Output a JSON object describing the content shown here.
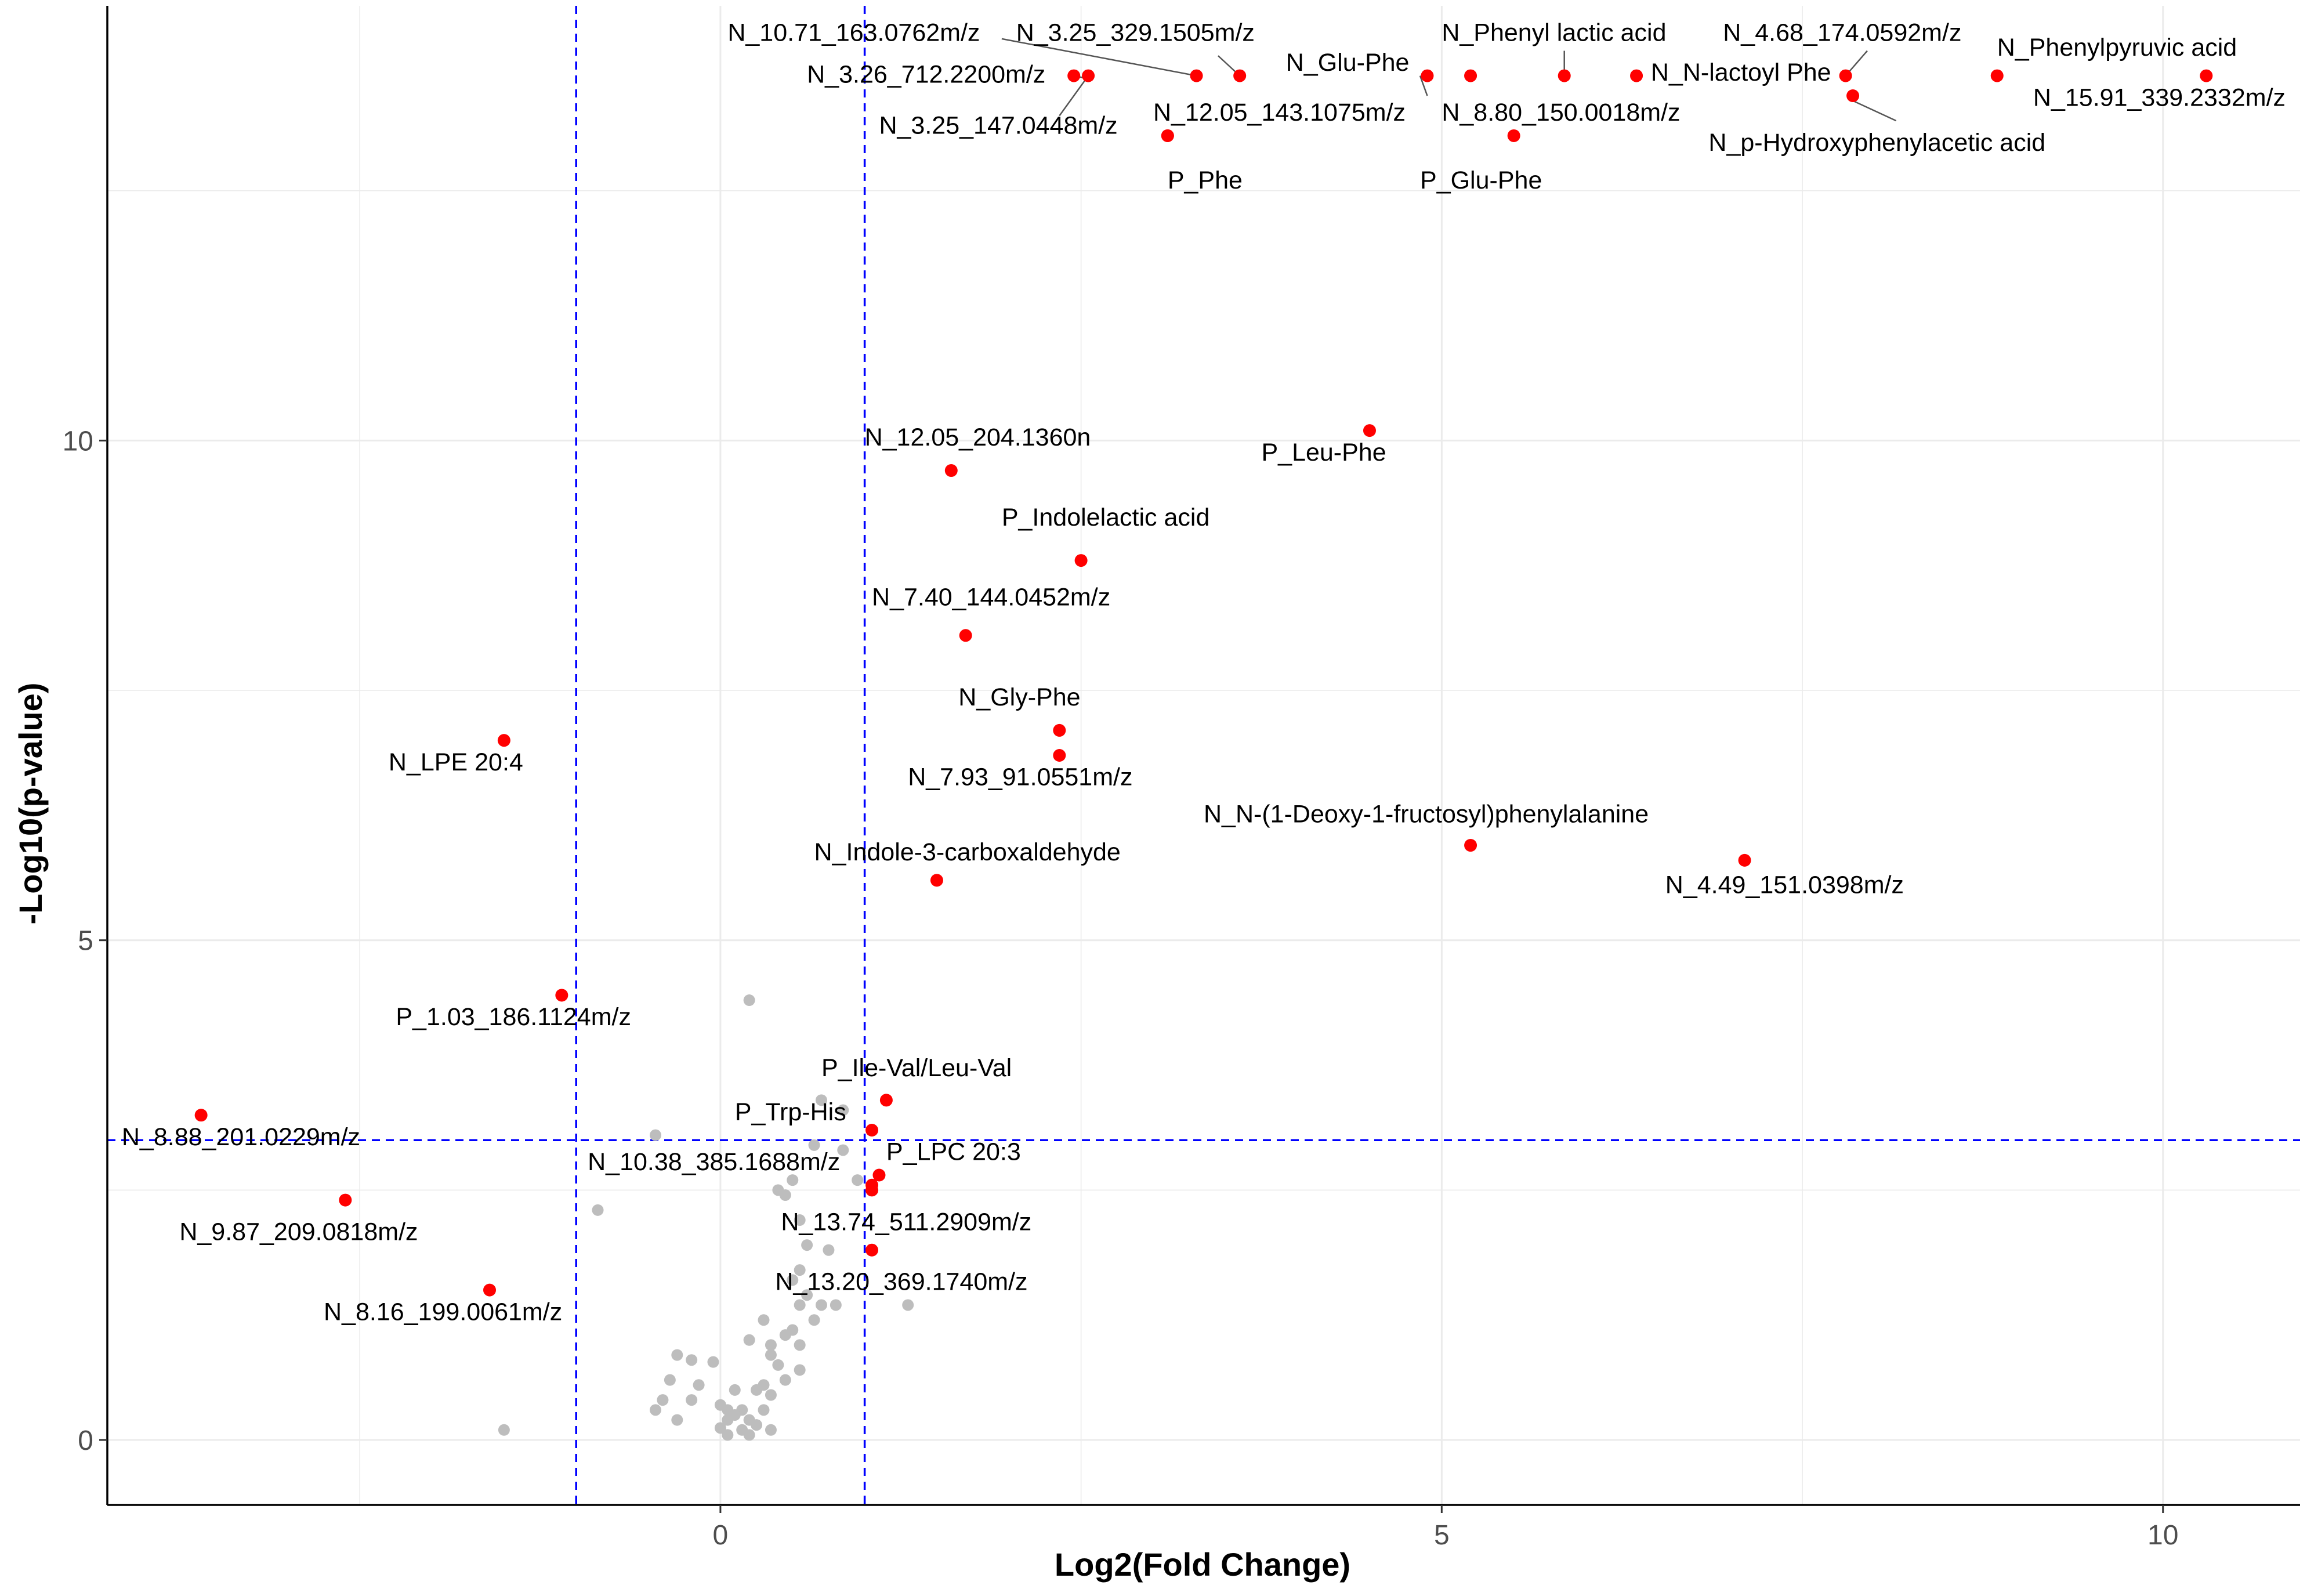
{
  "chart_data": {
    "type": "scatter",
    "title": "",
    "xlabel": "Log2(Fold Change)",
    "ylabel": "-Log10(p-value)",
    "xlim": [
      -4.25,
      10.95
    ],
    "ylim": [
      -0.65,
      14.35
    ],
    "xticks": [
      0,
      5,
      10
    ],
    "yticks": [
      0,
      5,
      10
    ],
    "xtick_labels": [
      "0",
      "5",
      "10"
    ],
    "ytick_labels": [
      "0",
      "5",
      "10"
    ],
    "grid": true,
    "legend": "none",
    "colors": {
      "significant": "#ff0000",
      "nonsignificant": "#bdbdbd",
      "threshold": "#0000ff",
      "axis": "#000000",
      "grid": "#ebebeb"
    },
    "thresholds": {
      "x": [
        -1,
        1
      ],
      "y": 3
    },
    "significant": [
      {
        "name": "N_10.71_163.0762m/z",
        "x": 3.3,
        "y": 13.65
      },
      {
        "name": "N_3.25_329.1505m/z",
        "x": 3.6,
        "y": 13.65
      },
      {
        "name": "N_3.26_712.2200m/z",
        "x": 2.45,
        "y": 13.65
      },
      {
        "name": "N_3.25_147.0448m/z",
        "x": 2.55,
        "y": 13.65
      },
      {
        "name": "N_12.05_143.1075m/z",
        "x": 3.1,
        "y": 13.05
      },
      {
        "name": "P_Phe",
        "x": 3.1,
        "y": 13.05
      },
      {
        "name": "N_Glu-Phe",
        "x": 4.9,
        "y": 13.65
      },
      {
        "name": "N_Phenyl lactic acid",
        "x": 5.85,
        "y": 13.65
      },
      {
        "name": "N_8.80_150.0018m/z",
        "x": 5.2,
        "y": 13.65
      },
      {
        "name": "P_Glu-Phe",
        "x": 5.5,
        "y": 13.05
      },
      {
        "name": "N_N-lactoyl Phe",
        "x": 6.35,
        "y": 13.65
      },
      {
        "name": "N_4.68_174.0592m/z",
        "x": 7.8,
        "y": 13.65
      },
      {
        "name": "N_p-Hydroxyphenylacetic acid",
        "x": 7.85,
        "y": 13.45
      },
      {
        "name": "N_Phenylpyruvic acid",
        "x": 8.85,
        "y": 13.65
      },
      {
        "name": "N_15.91_339.2332m/z",
        "x": 10.3,
        "y": 13.65
      },
      {
        "name": "P_Leu-Phe",
        "x": 4.5,
        "y": 10.1
      },
      {
        "name": "N_12.05_204.1360n",
        "x": 1.6,
        "y": 9.7
      },
      {
        "name": "P_Indolelactic acid",
        "x": 2.5,
        "y": 8.8
      },
      {
        "name": "N_7.40_144.0452m/z",
        "x": 1.7,
        "y": 8.05
      },
      {
        "name": "N_Gly-Phe",
        "x": 2.35,
        "y": 7.1
      },
      {
        "name": "N_7.93_91.0551m/z",
        "x": 2.35,
        "y": 6.85
      },
      {
        "name": "N_LPE 20:4",
        "x": -1.5,
        "y": 7.0
      },
      {
        "name": "N_N-(1-Deoxy-1-fructosyl)phenylalanine",
        "x": 5.2,
        "y": 5.95
      },
      {
        "name": "N_4.49_151.0398m/z",
        "x": 7.1,
        "y": 5.8
      },
      {
        "name": "N_Indole-3-carboxaldehyde",
        "x": 1.5,
        "y": 5.6
      },
      {
        "name": "P_1.03_186.1124m/z",
        "x": -1.1,
        "y": 4.45
      },
      {
        "name": "P_Ile-Val/Leu-Val",
        "x": 1.15,
        "y": 3.4
      },
      {
        "name": "P_Trp-His",
        "x": 1.05,
        "y": 3.1
      },
      {
        "name": "N_8.88_201.0229m/z",
        "x": -3.6,
        "y": 3.25
      },
      {
        "name": "P_LPC 20:3",
        "x": 1.1,
        "y": 2.65
      },
      {
        "name": "N_10.38_385.1688m/z",
        "x": 1.05,
        "y": 2.55
      },
      {
        "name": "N_13.74_511.2909m/z",
        "x": 1.05,
        "y": 2.5
      },
      {
        "name": "N_9.87_209.0818m/z",
        "x": -2.6,
        "y": 2.4
      },
      {
        "name": "N_13.20_369.1740m/z",
        "x": 1.05,
        "y": 1.9
      },
      {
        "name": "N_8.16_199.0061m/z",
        "x": -1.6,
        "y": 1.5
      }
    ],
    "nonsignificant": [
      [
        0.2,
        4.4
      ],
      [
        0.7,
        3.4
      ],
      [
        0.85,
        3.3
      ],
      [
        -0.45,
        3.05
      ],
      [
        0.65,
        2.95
      ],
      [
        0.85,
        2.9
      ],
      [
        0.5,
        2.6
      ],
      [
        0.95,
        2.6
      ],
      [
        0.4,
        2.5
      ],
      [
        0.45,
        2.45
      ],
      [
        -0.85,
        2.3
      ],
      [
        0.55,
        2.2
      ],
      [
        0.6,
        1.95
      ],
      [
        0.75,
        1.9
      ],
      [
        0.55,
        1.7
      ],
      [
        0.5,
        1.6
      ],
      [
        0.6,
        1.45
      ],
      [
        0.55,
        1.35
      ],
      [
        0.7,
        1.35
      ],
      [
        0.8,
        1.35
      ],
      [
        0.65,
        1.2
      ],
      [
        0.3,
        1.2
      ],
      [
        1.3,
        1.35
      ],
      [
        0.5,
        1.1
      ],
      [
        0.45,
        1.05
      ],
      [
        0.2,
        1.0
      ],
      [
        0.35,
        0.95
      ],
      [
        0.55,
        0.95
      ],
      [
        0.35,
        0.85
      ],
      [
        -0.3,
        0.85
      ],
      [
        -0.2,
        0.8
      ],
      [
        -0.05,
        0.78
      ],
      [
        0.4,
        0.75
      ],
      [
        0.55,
        0.7
      ],
      [
        0.45,
        0.6
      ],
      [
        0.3,
        0.55
      ],
      [
        -0.35,
        0.6
      ],
      [
        -0.15,
        0.55
      ],
      [
        0.1,
        0.5
      ],
      [
        0.25,
        0.5
      ],
      [
        0.35,
        0.45
      ],
      [
        -0.4,
        0.4
      ],
      [
        -0.2,
        0.4
      ],
      [
        0.0,
        0.35
      ],
      [
        0.05,
        0.3
      ],
      [
        0.15,
        0.3
      ],
      [
        -0.45,
        0.3
      ],
      [
        0.3,
        0.3
      ],
      [
        0.1,
        0.25
      ],
      [
        0.2,
        0.2
      ],
      [
        0.05,
        0.2
      ],
      [
        0.25,
        0.15
      ],
      [
        -0.3,
        0.2
      ],
      [
        0.0,
        0.12
      ],
      [
        0.15,
        0.1
      ],
      [
        0.35,
        0.1
      ],
      [
        0.05,
        0.05
      ],
      [
        0.2,
        0.05
      ],
      [
        -1.5,
        0.1
      ]
    ],
    "labels": [
      {
        "text": "N_10.71_163.0762m/z",
        "x": 0.05,
        "y": 14.0
      },
      {
        "text": "N_3.25_329.1505m/z",
        "x": 2.05,
        "y": 14.0
      },
      {
        "text": "N_3.26_712.2200m/z",
        "x": 0.6,
        "y": 13.58
      },
      {
        "text": "N_3.25_147.0448m/z",
        "x": 1.1,
        "y": 13.07
      },
      {
        "text": "N_12.05_143.1075m/z",
        "x": 3.0,
        "y": 13.2
      },
      {
        "text": "P_Phe",
        "x": 3.1,
        "y": 12.52
      },
      {
        "text": "N_Glu-Phe",
        "x": 3.92,
        "y": 13.7
      },
      {
        "text": "N_Phenyl lactic acid",
        "x": 5.0,
        "y": 14.0
      },
      {
        "text": "N_8.80_150.0018m/z",
        "x": 5.0,
        "y": 13.2
      },
      {
        "text": "P_Glu-Phe",
        "x": 4.85,
        "y": 12.52
      },
      {
        "text": "N_N-lactoyl Phe",
        "x": 6.45,
        "y": 13.6
      },
      {
        "text": "N_4.68_174.0592m/z",
        "x": 6.95,
        "y": 14.0
      },
      {
        "text": "N_p-Hydroxyphenylacetic acid",
        "x": 6.85,
        "y": 12.9
      },
      {
        "text": "N_Phenylpyruvic acid",
        "x": 8.85,
        "y": 13.85
      },
      {
        "text": "N_15.91_339.2332m/z",
        "x": 9.1,
        "y": 13.35
      },
      {
        "text": "P_Leu-Phe",
        "x": 3.75,
        "y": 9.8
      },
      {
        "text": "N_12.05_204.1360n",
        "x": 1.0,
        "y": 9.95
      },
      {
        "text": "P_Indolelactic acid",
        "x": 1.95,
        "y": 9.15
      },
      {
        "text": "N_7.40_144.0452m/z",
        "x": 1.05,
        "y": 8.35
      },
      {
        "text": "N_Gly-Phe",
        "x": 1.65,
        "y": 7.35
      },
      {
        "text": "N_7.93_91.0551m/z",
        "x": 1.3,
        "y": 6.55
      },
      {
        "text": "N_LPE 20:4",
        "x": -2.3,
        "y": 6.7
      },
      {
        "text": "N_N-(1-Deoxy-1-fructosyl)phenylalanine",
        "x": 3.35,
        "y": 6.18
      },
      {
        "text": "N_4.49_151.0398m/z",
        "x": 6.55,
        "y": 5.47
      },
      {
        "text": "N_Indole-3-carboxaldehyde",
        "x": 0.65,
        "y": 5.8
      },
      {
        "text": "P_1.03_186.1124m/z",
        "x": -2.25,
        "y": 4.15
      },
      {
        "text": "P_Ile-Val/Leu-Val",
        "x": 0.7,
        "y": 3.64
      },
      {
        "text": "P_Trp-His",
        "x": 0.1,
        "y": 3.2
      },
      {
        "text": "N_8.88_201.0229m/z",
        "x": -4.15,
        "y": 2.95
      },
      {
        "text": "P_LPC 20:3",
        "x": 1.15,
        "y": 2.8
      },
      {
        "text": "N_10.38_385.1688m/z",
        "x": -0.92,
        "y": 2.7
      },
      {
        "text": "N_13.74_511.2909m/z",
        "x": 0.42,
        "y": 2.1
      },
      {
        "text": "N_9.87_209.0818m/z",
        "x": -3.75,
        "y": 2.0
      },
      {
        "text": "N_13.20_369.1740m/z",
        "x": 0.38,
        "y": 1.5
      },
      {
        "text": "N_8.16_199.0061m/z",
        "x": -2.75,
        "y": 1.2
      }
    ],
    "leader_lines": [
      [
        [
          1.95,
          14.02
        ],
        [
          3.3,
          13.65
        ]
      ],
      [
        [
          3.45,
          13.85
        ],
        [
          3.6,
          13.65
        ]
      ],
      [
        [
          2.55,
          13.62
        ],
        [
          2.45,
          13.65
        ]
      ],
      [
        [
          2.35,
          13.25
        ],
        [
          2.55,
          13.65
        ]
      ],
      [
        [
          4.9,
          13.45
        ],
        [
          4.85,
          13.65
        ]
      ],
      [
        [
          5.85,
          13.7
        ],
        [
          5.85,
          13.9
        ]
      ],
      [
        [
          7.85,
          13.4
        ],
        [
          8.15,
          13.2
        ]
      ],
      [
        [
          7.8,
          13.65
        ],
        [
          7.95,
          13.9
        ]
      ]
    ]
  }
}
